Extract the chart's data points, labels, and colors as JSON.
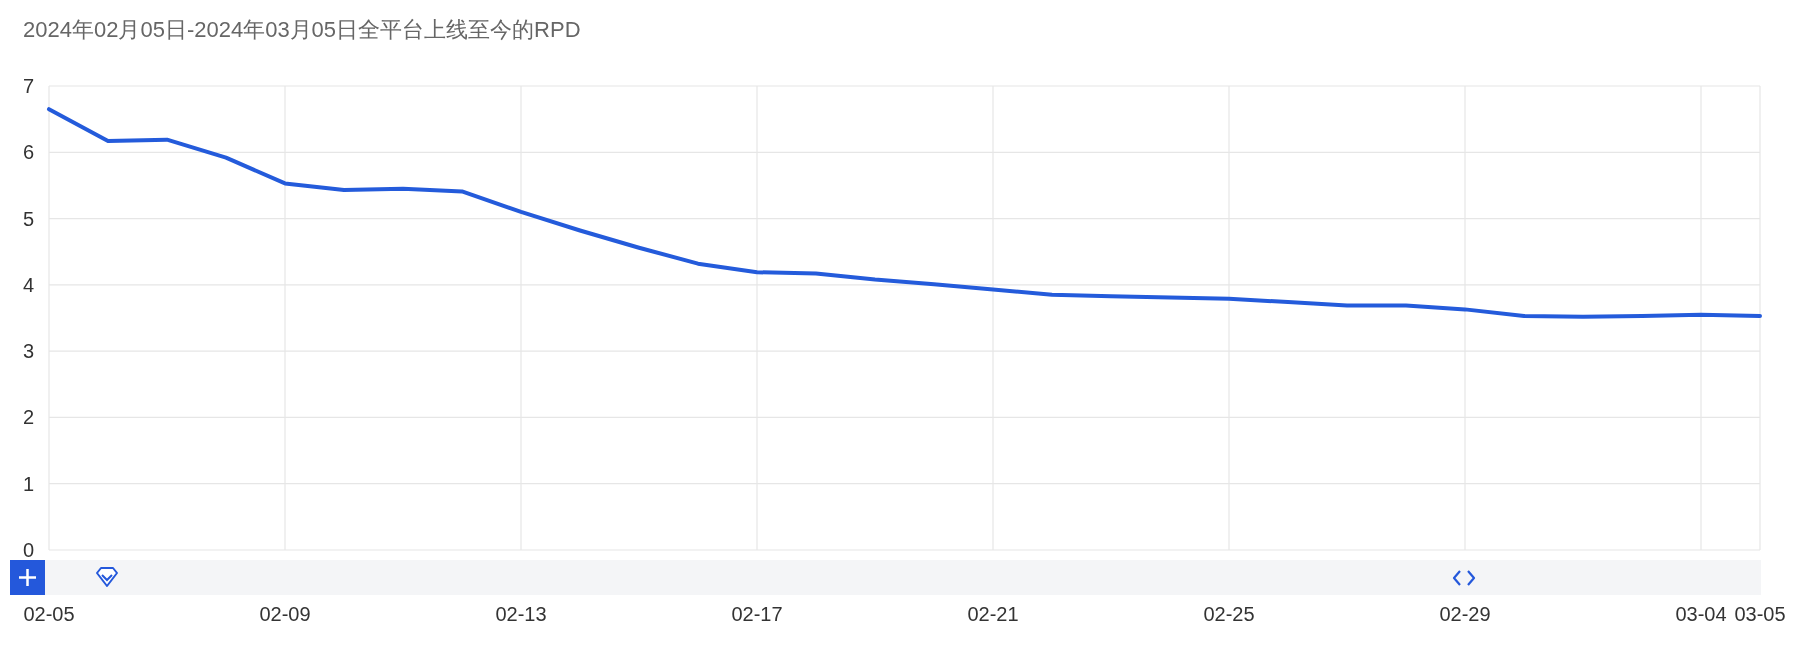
{
  "chart_data": {
    "type": "line",
    "title": "2024年02月05日-2024年03月05日全平台上线至今的RPD",
    "x": [
      "--02-05",
      "--02-06",
      "--02-07",
      "--02-08",
      "--02-09",
      "--02-10",
      "--02-11",
      "--02-12",
      "--02-13",
      "--02-14",
      "--02-15",
      "--02-16",
      "--02-17",
      "--02-18",
      "--02-19",
      "--02-20",
      "--02-21",
      "--02-22",
      "--02-23",
      "--02-24",
      "--02-25",
      "--02-26",
      "--02-27",
      "--02-28",
      "--02-29",
      "--03-01",
      "--03-02",
      "--03-03",
      "--03-04",
      "--03-05"
    ],
    "values": [
      6.65,
      6.17,
      6.19,
      5.92,
      5.53,
      5.43,
      5.45,
      5.41,
      5.1,
      4.82,
      4.56,
      4.32,
      4.19,
      4.17,
      4.08,
      4.01,
      3.93,
      3.85,
      3.83,
      3.81,
      3.79,
      3.74,
      3.69,
      3.69,
      3.63,
      3.53,
      3.52,
      3.53,
      3.55,
      3.53
    ],
    "color": "#245bdb",
    "xlim": [
      "--02-05",
      "--03-05"
    ],
    "xticks": [
      {
        "value": "--02-05",
        "label": "02-05"
      },
      {
        "value": "--02-09",
        "label": "02-09"
      },
      {
        "value": "--02-13",
        "label": "02-13"
      },
      {
        "value": "--02-17",
        "label": "02-17"
      },
      {
        "value": "--02-21",
        "label": "02-21"
      },
      {
        "value": "--02-25",
        "label": "02-25"
      },
      {
        "value": "--02-29",
        "label": "02-29"
      },
      {
        "value": "--03-04",
        "label": "03-04"
      },
      {
        "value": "--03-05",
        "label": "03-05"
      }
    ],
    "ylim": [
      0,
      7
    ],
    "yticks": [
      0,
      1,
      2,
      3,
      4,
      5,
      6,
      7
    ],
    "grid": true
  }
}
